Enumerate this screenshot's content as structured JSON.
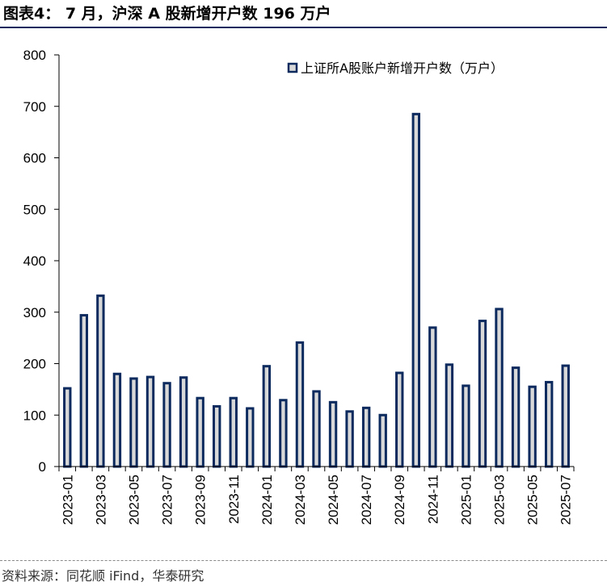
{
  "title": "图表4： 7 月，沪深 A 股新增开户数 196 万户",
  "source": "资料来源：同花顺 iFind，华泰研究",
  "colors": {
    "bar_border": "#0c2a5e",
    "bar_fill": "#d9d9d9",
    "axis": "#000000"
  },
  "chart_data": {
    "type": "bar",
    "title": "",
    "xlabel": "",
    "ylabel": "",
    "ylim": [
      0,
      800
    ],
    "yticks": [
      0,
      100,
      200,
      300,
      400,
      500,
      600,
      700,
      800
    ],
    "categories": [
      "2023-01",
      "2023-02",
      "2023-03",
      "2023-04",
      "2023-05",
      "2023-06",
      "2023-07",
      "2023-08",
      "2023-09",
      "2023-10",
      "2023-11",
      "2023-12",
      "2024-01",
      "2024-02",
      "2024-03",
      "2024-04",
      "2024-05",
      "2024-06",
      "2024-07",
      "2024-08",
      "2024-09",
      "2024-10",
      "2024-11",
      "2024-12",
      "2025-01",
      "2025-02",
      "2025-03",
      "2025-04",
      "2025-05",
      "2025-06",
      "2025-07"
    ],
    "xtick_labels": [
      "2023-01",
      "2023-03",
      "2023-05",
      "2023-07",
      "2023-09",
      "2023-11",
      "2024-01",
      "2024-03",
      "2024-05",
      "2024-07",
      "2024-09",
      "2024-11",
      "2025-01",
      "2025-03",
      "2025-05",
      "2025-07"
    ],
    "series": [
      {
        "name": "上证所A股账户新增开户数（万户）",
        "values": [
          152,
          294,
          332,
          180,
          171,
          174,
          162,
          173,
          133,
          117,
          133,
          113,
          195,
          129,
          241,
          146,
          125,
          107,
          114,
          100,
          182,
          685,
          270,
          198,
          157,
          283,
          306,
          192,
          155,
          164,
          196
        ]
      }
    ],
    "legend_position": "top-right"
  }
}
